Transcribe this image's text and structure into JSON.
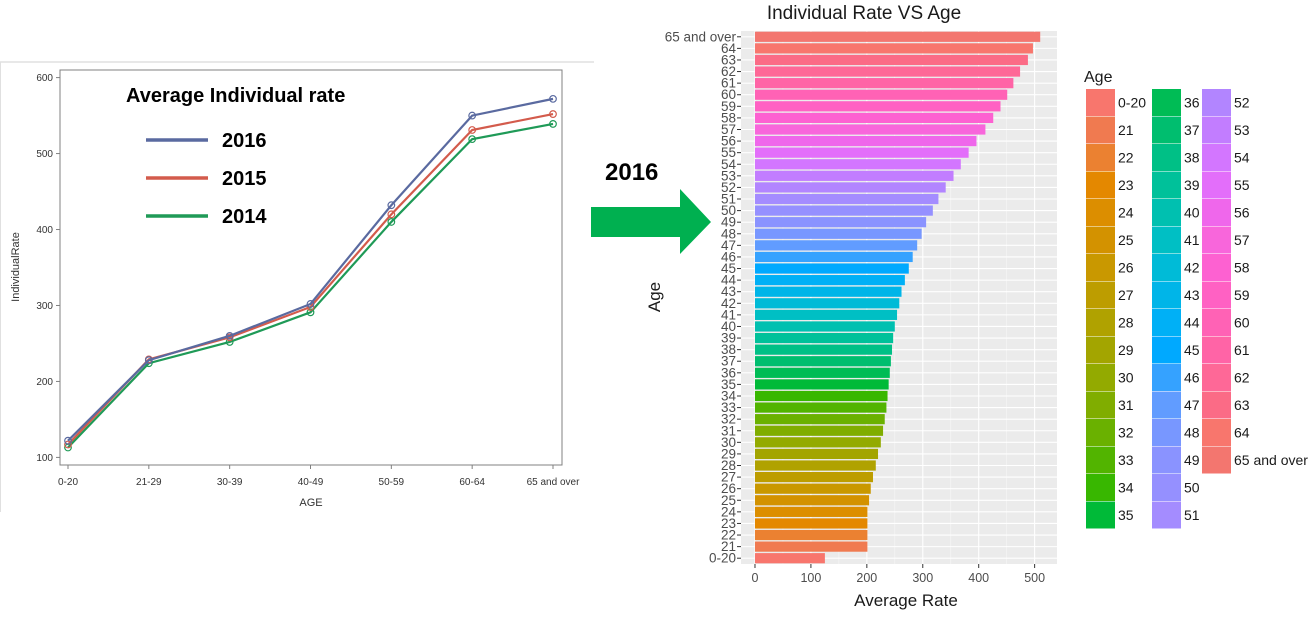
{
  "chart_data": [
    {
      "type": "line",
      "title": "Average Individual rate",
      "xlabel": "AGE",
      "ylabel": "IndividualRate",
      "categories": [
        "0-20",
        "21-29",
        "30-39",
        "40-49",
        "50-59",
        "60-64",
        "65 and over"
      ],
      "ylim": [
        90,
        610
      ],
      "yticks": [
        100,
        200,
        300,
        400,
        500,
        600
      ],
      "grid": false,
      "legend_position": "top-left (inside plot)",
      "series": [
        {
          "name": "2016",
          "color": "#5a6aa0",
          "values": [
            122,
            228,
            260,
            302,
            432,
            550,
            572
          ]
        },
        {
          "name": "2015",
          "color": "#d35b4c",
          "values": [
            117,
            229,
            258,
            298,
            420,
            531,
            552
          ]
        },
        {
          "name": "2014",
          "color": "#1f9a57",
          "values": [
            113,
            224,
            252,
            291,
            410,
            519,
            539
          ]
        }
      ]
    },
    {
      "type": "bar",
      "orientation": "horizontal",
      "title": "Individual Rate VS Age",
      "xlabel": "Average Rate",
      "ylabel": "Age",
      "xlim": [
        -25,
        540
      ],
      "xticks": [
        0,
        100,
        200,
        300,
        400,
        500
      ],
      "grid": true,
      "legend_title": "Age",
      "legend_position": "right",
      "categories": [
        "0-20",
        "21",
        "22",
        "23",
        "24",
        "25",
        "26",
        "27",
        "28",
        "29",
        "30",
        "31",
        "32",
        "33",
        "34",
        "35",
        "36",
        "37",
        "38",
        "39",
        "40",
        "41",
        "42",
        "43",
        "44",
        "45",
        "46",
        "47",
        "48",
        "49",
        "50",
        "51",
        "52",
        "53",
        "54",
        "55",
        "56",
        "57",
        "58",
        "59",
        "60",
        "61",
        "62",
        "63",
        "64",
        "65 and over"
      ],
      "values": [
        125,
        201,
        201,
        201,
        201,
        204,
        207,
        211,
        216,
        220,
        225,
        229,
        232,
        235,
        237,
        239,
        241,
        243,
        245,
        247,
        250,
        254,
        258,
        262,
        268,
        275,
        282,
        290,
        298,
        306,
        318,
        328,
        341,
        355,
        368,
        382,
        396,
        412,
        426,
        439,
        451,
        462,
        474,
        488,
        497,
        510
      ],
      "colors": [
        "#f8766d",
        "#f07a50",
        "#eb8131",
        "#e48800",
        "#dc8e00",
        "#d39200",
        "#c99800",
        "#bd9d00",
        "#b0a200",
        "#a3a500",
        "#93aa00",
        "#80ad00",
        "#6ab100",
        "#52b400",
        "#38b700",
        "#00ba38",
        "#00bc55",
        "#00be6f",
        "#00c086",
        "#00c19a",
        "#00c0b0",
        "#00bfc4",
        "#00bbd7",
        "#00b5e8",
        "#00b0f6",
        "#00a9ff",
        "#35a2ff",
        "#619cff",
        "#7897ff",
        "#8a93ff",
        "#9590ff",
        "#a48cff",
        "#b285ff",
        "#c27dff",
        "#d376ff",
        "#e36efa",
        "#ef67eb",
        "#f866db",
        "#fd61d1",
        "#ff61c3",
        "#ff62b5",
        "#ff64a6",
        "#fe6897",
        "#fb6b86",
        "#f8766d",
        "#f3766f"
      ]
    }
  ],
  "arrow": {
    "label": "2016",
    "color": "#00b050"
  }
}
